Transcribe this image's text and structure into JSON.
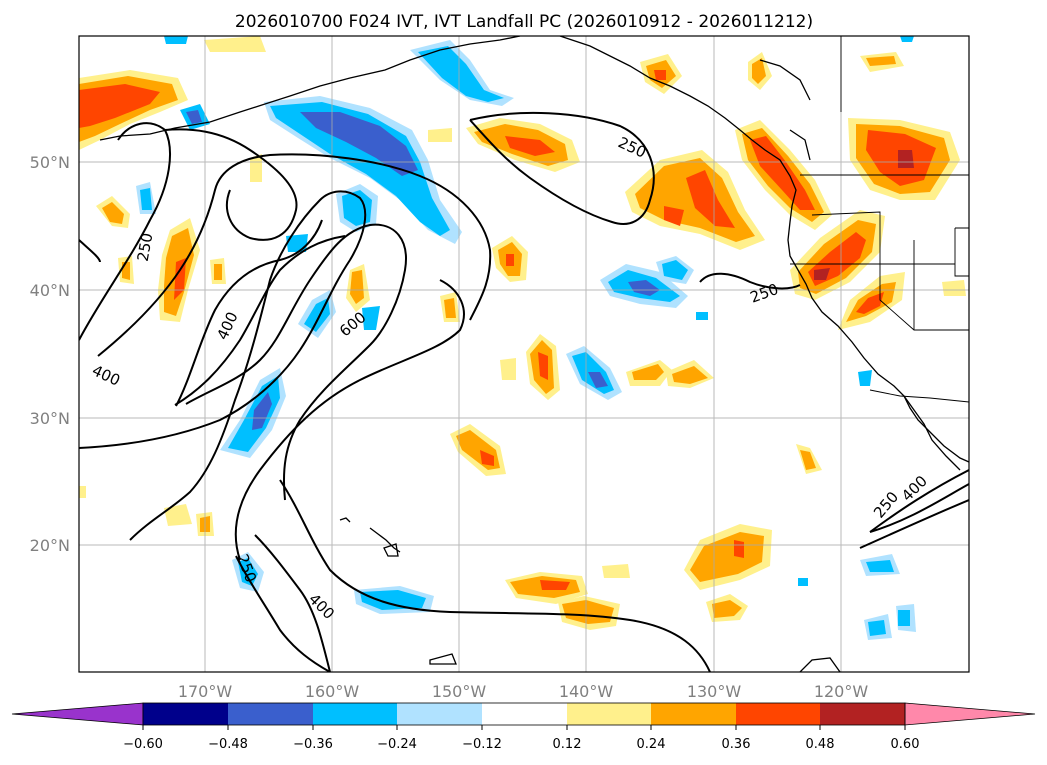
{
  "title": "2026010700 F024 IVT, IVT Landfall PC (2026010912 - 2026011212)",
  "map": {
    "lat_ticks": [
      "50°N",
      "40°N",
      "30°N",
      "20°N"
    ],
    "lon_ticks": [
      "170°W",
      "160°W",
      "150°W",
      "140°W",
      "130°W",
      "120°W"
    ],
    "contour_labels": [
      "250",
      "250",
      "250",
      "250",
      "400",
      "400",
      "400",
      "400",
      "600",
      "250"
    ]
  },
  "colorbar": {
    "colors": [
      "#9933cc",
      "#00008b",
      "#3a5fcd",
      "#00bfff",
      "#b0e2ff",
      "#ffffff",
      "#fff08c",
      "#ffa500",
      "#ff4500",
      "#b22222",
      "#ff88aa"
    ],
    "tick_labels": [
      "−0.60",
      "−0.48",
      "−0.36",
      "−0.24",
      "−0.12",
      "0.12",
      "0.24",
      "0.36",
      "0.48",
      "0.60"
    ]
  }
}
